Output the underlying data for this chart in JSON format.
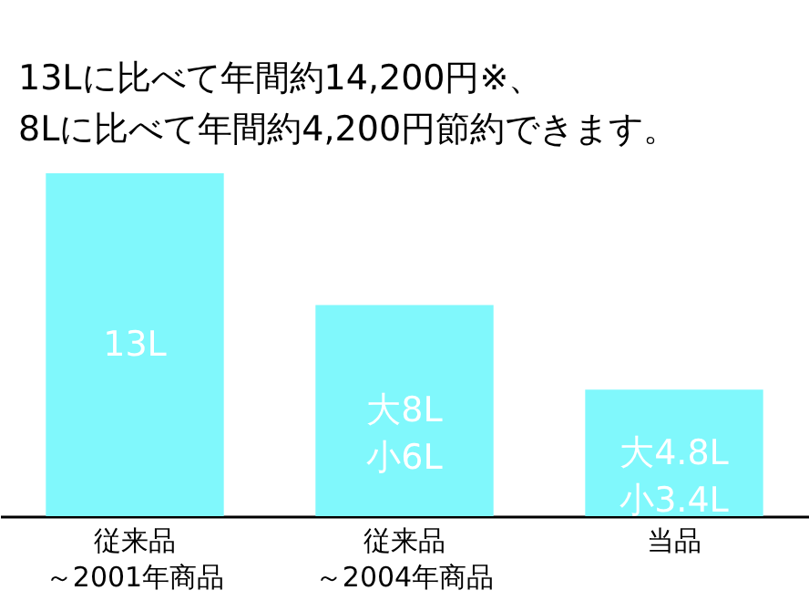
{
  "chart_data": {
    "type": "bar",
    "title": "13Lに比べて年間約14,200円※、8Lに比べて年間約4,200円節約できます。",
    "categories": [
      "従来品～2001年商品",
      "従来品～2004年商品",
      "当品"
    ],
    "values": [
      13,
      8,
      4.8
    ],
    "value_labels": [
      "13L",
      "大8L小6L",
      "大4.8L小3.4L"
    ],
    "color": "#80f8fc"
  }
}
